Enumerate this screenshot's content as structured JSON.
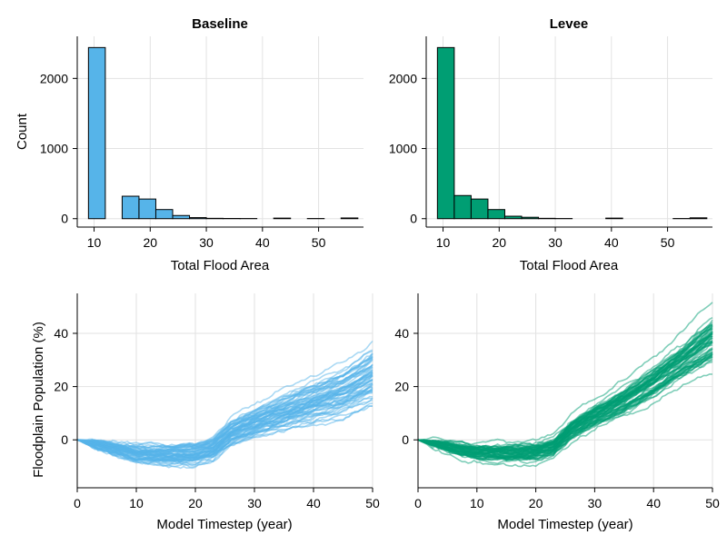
{
  "chart_data": [
    {
      "id": "hist-baseline",
      "type": "bar",
      "title": "Baseline",
      "xlabel": "Total Flood Area",
      "ylabel": "Count",
      "xlim": [
        7,
        58
      ],
      "ylim": [
        -120,
        2600
      ],
      "xticks": [
        "10",
        "20",
        "30",
        "40",
        "50"
      ],
      "yticks": [
        "0",
        "1000",
        "2000"
      ],
      "color": "#56b4e9",
      "bin_edges": [
        9,
        12,
        15,
        18,
        21,
        24,
        27,
        30,
        33,
        36,
        39,
        42,
        45,
        48,
        51,
        54,
        57
      ],
      "values": [
        2440,
        0,
        320,
        280,
        130,
        45,
        15,
        5,
        3,
        2,
        0,
        8,
        0,
        2,
        0,
        10
      ]
    },
    {
      "id": "hist-levee",
      "type": "bar",
      "title": "Levee",
      "xlabel": "Total Flood Area",
      "ylabel": "",
      "xlim": [
        7,
        58
      ],
      "ylim": [
        -120,
        2600
      ],
      "xticks": [
        "10",
        "20",
        "30",
        "40",
        "50"
      ],
      "yticks": [
        "0",
        "1000",
        "2000"
      ],
      "color": "#009e73",
      "bin_edges": [
        9,
        12,
        15,
        18,
        21,
        24,
        27,
        30,
        33,
        36,
        39,
        42,
        45,
        48,
        51,
        54,
        57
      ],
      "values": [
        2440,
        330,
        280,
        130,
        35,
        20,
        5,
        2,
        0,
        0,
        8,
        0,
        0,
        0,
        2,
        12
      ]
    },
    {
      "id": "lines-baseline",
      "type": "line",
      "title": "",
      "xlabel": "Model Timestep (year)",
      "ylabel": "Floodplain Population (%)",
      "xlim": [
        0,
        50
      ],
      "ylim": [
        -18,
        55
      ],
      "xticks": [
        "0",
        "10",
        "20",
        "30",
        "40",
        "50"
      ],
      "yticks": [
        "0",
        "20",
        "40"
      ],
      "color": "#56b4e9",
      "series_count": 60,
      "envelope": {
        "x": [
          0,
          5,
          10,
          15,
          20,
          23,
          26,
          30,
          35,
          40,
          45,
          50
        ],
        "mean": [
          0,
          -2.5,
          -5,
          -5.5,
          -5,
          -3,
          3,
          7,
          11,
          15,
          19,
          25
        ],
        "spread": [
          0,
          1.5,
          2.5,
          3,
          3.5,
          3.5,
          4,
          4.5,
          5.5,
          6.5,
          7.5,
          9
        ]
      }
    },
    {
      "id": "lines-levee",
      "type": "line",
      "title": "",
      "xlabel": "Model Timestep (year)",
      "ylabel": "",
      "xlim": [
        0,
        50
      ],
      "ylim": [
        -18,
        55
      ],
      "xticks": [
        "0",
        "10",
        "20",
        "30",
        "40",
        "50"
      ],
      "yticks": [
        "0",
        "20",
        "40"
      ],
      "color": "#009e73",
      "series_count": 60,
      "envelope": {
        "x": [
          0,
          5,
          10,
          15,
          20,
          23,
          26,
          30,
          35,
          40,
          45,
          50
        ],
        "mean": [
          0,
          -2.5,
          -4.5,
          -5,
          -4.5,
          -2.5,
          4,
          9,
          15,
          22,
          30,
          38
        ],
        "spread": [
          0,
          1.5,
          2.5,
          3,
          3,
          3,
          3.5,
          4,
          5,
          6,
          7,
          9
        ]
      }
    }
  ]
}
